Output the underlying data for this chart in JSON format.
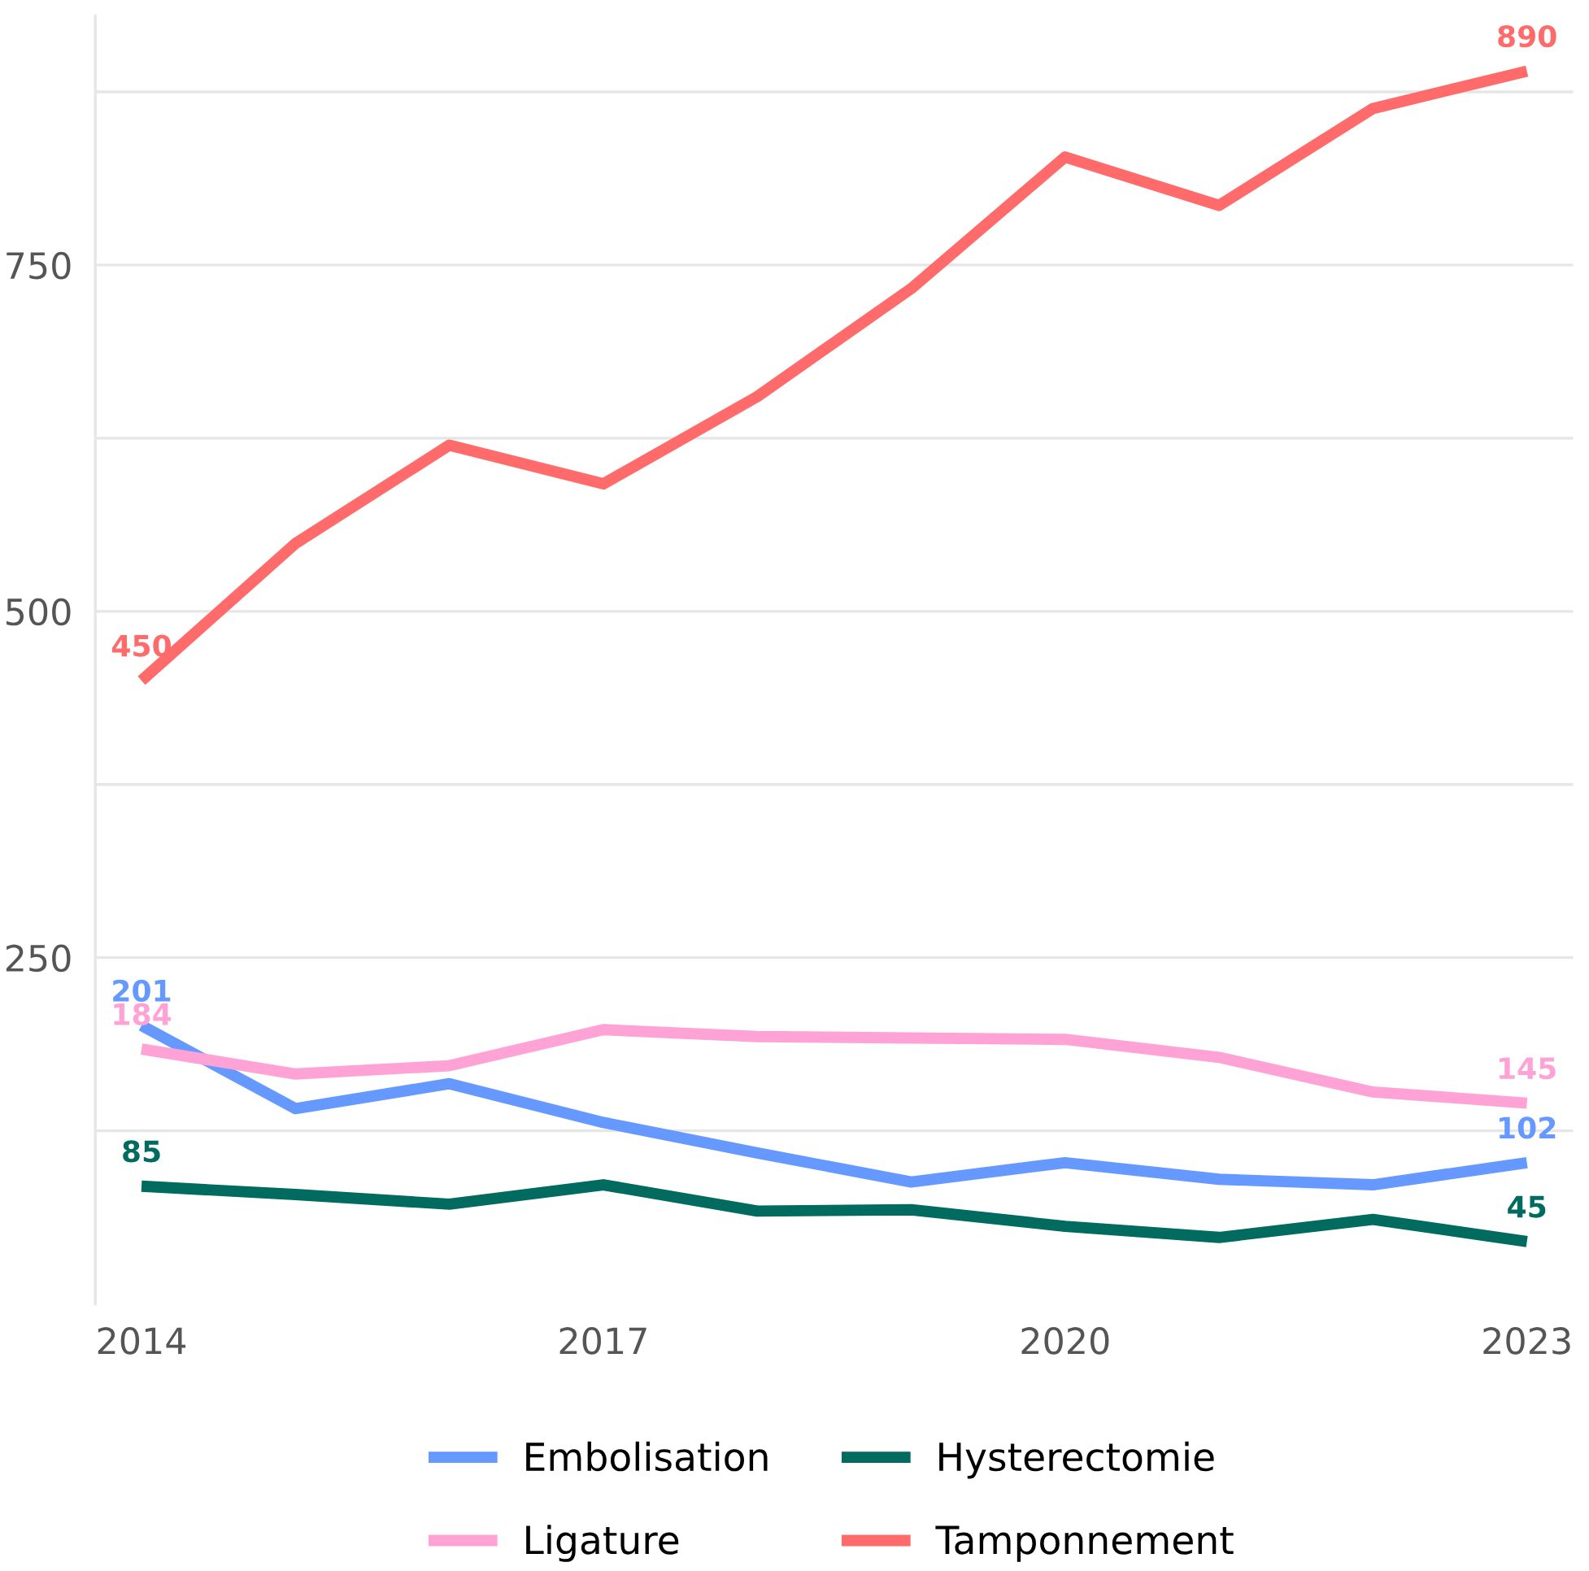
{
  "chart_data": {
    "type": "line",
    "x": [
      2014,
      2015,
      2016,
      2017,
      2018,
      2019,
      2020,
      2021,
      2022,
      2023
    ],
    "xlim": [
      2013.7,
      2023.3
    ],
    "xticks": [
      2014,
      2017,
      2020,
      2023
    ],
    "ylim": [
      0,
      930
    ],
    "yticks": [
      {
        "value": 125,
        "label": null
      },
      250,
      {
        "value": 375,
        "label": null
      },
      500,
      {
        "value": 625,
        "label": null
      },
      750,
      {
        "value": 875,
        "label": null
      }
    ],
    "grid": "y",
    "legend": "bottom",
    "marker": "none",
    "line_style": "solid",
    "series": [
      {
        "name": "Embolisation",
        "color": "#6699ff",
        "values": [
          201,
          141,
          159,
          131,
          109,
          88,
          102,
          90,
          86,
          102
        ],
        "value_labels": [
          "201",
          null,
          null,
          null,
          null,
          null,
          null,
          null,
          null,
          "102"
        ]
      },
      {
        "name": "Hysterectomie",
        "color": "#006b5e",
        "values": [
          85,
          79,
          72,
          86,
          67,
          68,
          56,
          48,
          61,
          45
        ],
        "value_labels": [
          "85",
          null,
          null,
          null,
          null,
          null,
          null,
          null,
          null,
          "45"
        ]
      },
      {
        "name": "Ligature",
        "color": "#ffa3d6",
        "values": [
          184,
          166,
          172,
          198,
          193,
          192,
          191,
          178,
          153,
          145
        ],
        "value_labels": [
          "184",
          null,
          null,
          null,
          null,
          null,
          null,
          null,
          null,
          "145"
        ]
      },
      {
        "name": "Tamponnement",
        "color": "#ff6b6b",
        "values": [
          450,
          549,
          620,
          592,
          655,
          733,
          828,
          793,
          863,
          890
        ],
        "value_labels": [
          "450",
          null,
          null,
          null,
          null,
          null,
          null,
          null,
          null,
          "890"
        ]
      }
    ]
  }
}
